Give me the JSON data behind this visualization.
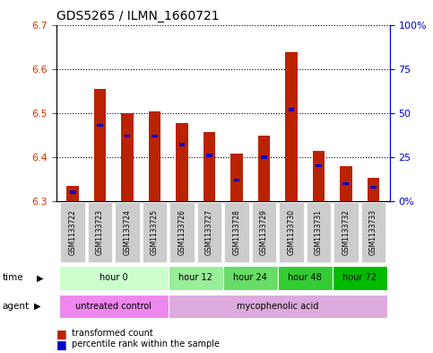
{
  "title": "GDS5265 / ILMN_1660721",
  "samples": [
    "GSM1133722",
    "GSM1133723",
    "GSM1133724",
    "GSM1133725",
    "GSM1133726",
    "GSM1133727",
    "GSM1133728",
    "GSM1133729",
    "GSM1133730",
    "GSM1133731",
    "GSM1133732",
    "GSM1133733"
  ],
  "transformed_count": [
    6.335,
    6.555,
    6.5,
    6.503,
    6.478,
    6.456,
    6.408,
    6.448,
    6.638,
    6.415,
    6.38,
    6.353
  ],
  "percentile_rank": [
    5,
    43,
    37,
    37,
    32,
    26,
    12,
    25,
    52,
    20,
    10,
    8
  ],
  "ylim_left": [
    6.3,
    6.7
  ],
  "ylim_right": [
    0,
    100
  ],
  "yticks_left": [
    6.3,
    6.4,
    6.5,
    6.6,
    6.7
  ],
  "yticks_right": [
    0,
    25,
    50,
    75,
    100
  ],
  "bar_color": "#bb2200",
  "blue_color": "#0000cc",
  "baseline": 6.3,
  "time_groups": [
    {
      "label": "hour 0",
      "start": 0,
      "end": 4,
      "color": "#ccffcc"
    },
    {
      "label": "hour 12",
      "start": 4,
      "end": 6,
      "color": "#99ee99"
    },
    {
      "label": "hour 24",
      "start": 6,
      "end": 8,
      "color": "#66dd66"
    },
    {
      "label": "hour 48",
      "start": 8,
      "end": 10,
      "color": "#33cc33"
    },
    {
      "label": "hour 72",
      "start": 10,
      "end": 12,
      "color": "#00bb00"
    }
  ],
  "agent_groups": [
    {
      "label": "untreated control",
      "start": 0,
      "end": 4,
      "color": "#ee88ee"
    },
    {
      "label": "mycophenolic acid",
      "start": 4,
      "end": 12,
      "color": "#ddaadd"
    }
  ],
  "left_tick_color": "#cc3300",
  "right_tick_color": "#0000cc",
  "grid_color": "#000000",
  "bar_width": 0.45
}
